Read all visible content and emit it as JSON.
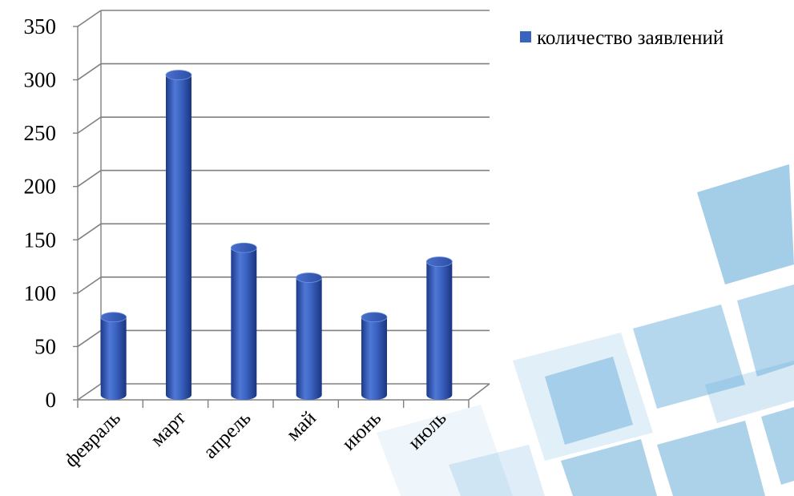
{
  "chart_data": {
    "type": "bar",
    "style": "3d-cylinder",
    "categories": [
      "февраль",
      "март",
      "апрель",
      "май",
      "июнь",
      "июль"
    ],
    "series": [
      {
        "name": "количество заявлений",
        "values": [
          73,
          300,
          138,
          110,
          73,
          125
        ],
        "color": "#3a62c0"
      }
    ],
    "ylim": [
      0,
      350
    ],
    "yticks": [
      0,
      50,
      100,
      150,
      200,
      250,
      300,
      350
    ],
    "grid": true,
    "legend": "top-right",
    "title": "",
    "xlabel": "",
    "ylabel": ""
  },
  "colors": {
    "bar": "#3a62c0",
    "bar_dark": "#1c3a8a",
    "bar_light": "#7fa2e8",
    "grid": "#808080",
    "background_tiles": "#5aa6d6"
  }
}
